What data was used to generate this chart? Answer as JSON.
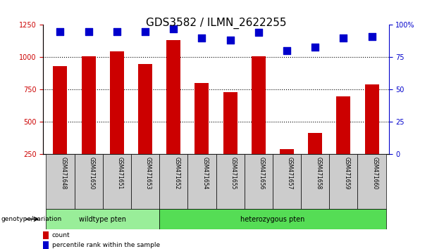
{
  "title": "GDS3582 / ILMN_2622255",
  "samples": [
    "GSM471648",
    "GSM471650",
    "GSM471651",
    "GSM471653",
    "GSM471652",
    "GSM471654",
    "GSM471655",
    "GSM471656",
    "GSM471657",
    "GSM471658",
    "GSM471659",
    "GSM471660"
  ],
  "counts": [
    930,
    1010,
    1045,
    950,
    1130,
    800,
    730,
    1010,
    290,
    415,
    700,
    790
  ],
  "percentiles": [
    95,
    95,
    95,
    95,
    97,
    90,
    88,
    94,
    80,
    83,
    90,
    91
  ],
  "wildtype_count": 4,
  "wildtype_label": "wildtype pten",
  "het_label": "heterozygous pten",
  "group_label": "genotype/variation",
  "ylim_left": [
    250,
    1250
  ],
  "ylim_right": [
    0,
    100
  ],
  "yticks_left": [
    250,
    500,
    750,
    1000,
    1250
  ],
  "yticks_right": [
    0,
    25,
    50,
    75,
    100
  ],
  "bar_color": "#cc0000",
  "dot_color": "#0000cc",
  "bg_color": "#ffffff",
  "plot_bg": "#ffffff",
  "grid_color": "#000000",
  "wildtype_bg": "#99ee99",
  "het_bg": "#55dd55",
  "sample_bg": "#cccccc",
  "legend_count_label": "count",
  "legend_pct_label": "percentile rank within the sample",
  "title_fontsize": 11,
  "axis_fontsize": 8,
  "tick_fontsize": 7,
  "dotted_lines": [
    500,
    750,
    1000
  ],
  "dot_size": 50
}
